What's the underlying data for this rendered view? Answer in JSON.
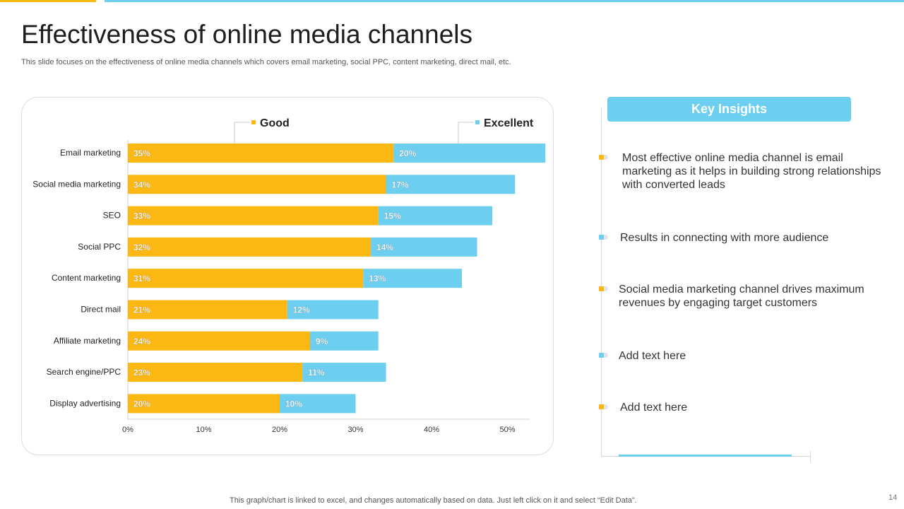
{
  "slide": {
    "title": "Effectiveness of online media channels",
    "subtitle": "This slide focuses on the effectiveness of online media channels which covers email marketing, social PPC, content marketing, direct mail, etc.",
    "footer": "This graph/chart is linked to excel,  and changes automatically based on data. Just left click on it and select “Edit Data”.",
    "page_number": "14"
  },
  "colors": {
    "good": "#fbb712",
    "excellent": "#6dcff0"
  },
  "chart_data": {
    "type": "bar",
    "orientation": "horizontal",
    "stacked": true,
    "categories": [
      "Email marketing",
      "Social media marketing",
      "SEO",
      "Social PPC",
      "Content marketing",
      "Direct mail",
      "Affiliate marketing",
      "Search engine/PPC",
      "Display advertising"
    ],
    "series": [
      {
        "name": "Good",
        "values": [
          35,
          34,
          33,
          32,
          31,
          21,
          24,
          23,
          20
        ],
        "labels": [
          "35%",
          "34%",
          "33%",
          "32%",
          "31%",
          "21%",
          "24%",
          "23%",
          "20%"
        ]
      },
      {
        "name": "Excellent",
        "values": [
          20,
          17,
          15,
          14,
          13,
          12,
          9,
          11,
          10
        ],
        "labels": [
          "20%",
          "17%",
          "15%",
          "14%",
          "13%",
          "12%",
          "9%",
          "11%",
          "10%"
        ]
      }
    ],
    "xlim": [
      0,
      50
    ],
    "xticks": [
      0,
      10,
      20,
      30,
      40,
      50
    ],
    "xtick_labels": [
      "0%",
      "10%",
      "20%",
      "30%",
      "40%",
      "50%"
    ],
    "legend_position": "top",
    "grid": false
  },
  "insights": {
    "header": "Key Insights",
    "items": [
      {
        "text": "Most effective online media channel is email marketing as it helps in building strong relationships with converted leads",
        "color": "yellow"
      },
      {
        "text": "Results  in connecting with more audience",
        "color": "blue"
      },
      {
        "text": "Social media marketing channel drives maximum revenues by engaging target customers",
        "color": "yellow"
      },
      {
        "text": "Add text here",
        "color": "blue"
      },
      {
        "text": "Add text here",
        "color": "yellow"
      }
    ]
  }
}
